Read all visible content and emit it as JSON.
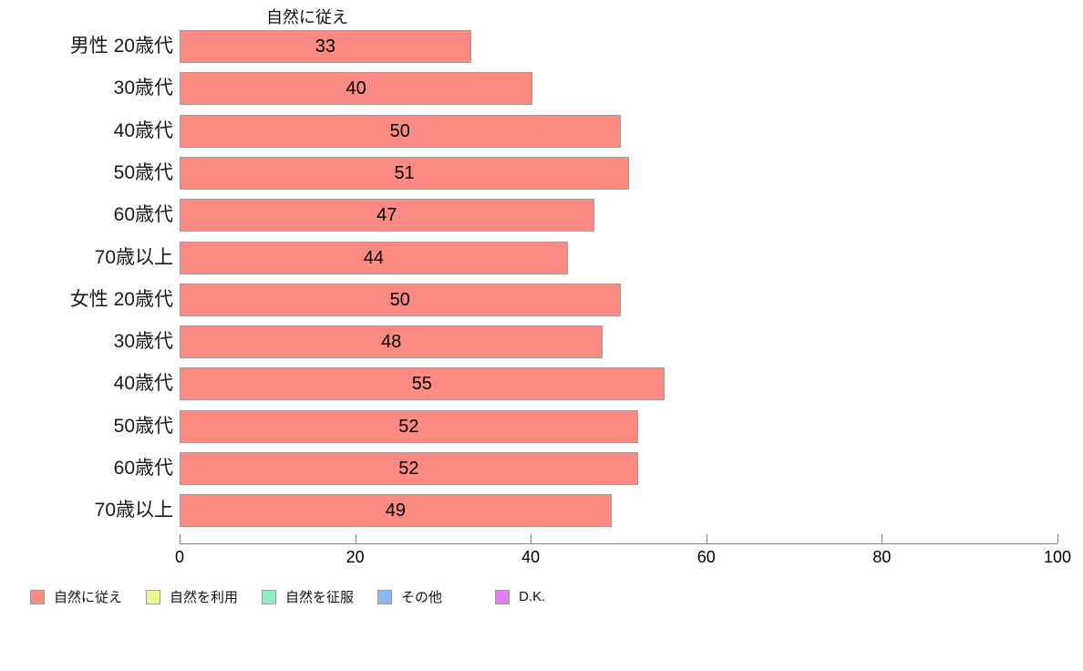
{
  "chart_data": {
    "type": "bar",
    "orientation": "horizontal",
    "title": "自然に従え",
    "categories": [
      "男性 20歳代",
      "30歳代",
      "40歳代",
      "50歳代",
      "60歳代",
      "70歳以上",
      "女性 20歳代",
      "30歳代",
      "40歳代",
      "50歳代",
      "60歳代",
      "70歳以上"
    ],
    "values": [
      33,
      40,
      50,
      51,
      47,
      44,
      50,
      48,
      55,
      52,
      52,
      49
    ],
    "xlabel": "",
    "ylabel": "",
    "xlim": [
      0,
      100
    ],
    "x_ticks": [
      0,
      20,
      40,
      60,
      80,
      100
    ],
    "grid": false,
    "value_labels_shown": true,
    "bar_color": "#fb8a82",
    "bar_border_color": "#aa9898",
    "legend_position": "bottom",
    "legend": [
      {
        "label": "自然に従え",
        "color": "#fb8a82"
      },
      {
        "label": "自然を利用",
        "color": "#ecf78f"
      },
      {
        "label": "自然を征服",
        "color": "#90eebf"
      },
      {
        "label": "その他",
        "color": "#8fb6f4"
      },
      {
        "label": "D.K.",
        "color": "#e07ff0"
      }
    ]
  }
}
